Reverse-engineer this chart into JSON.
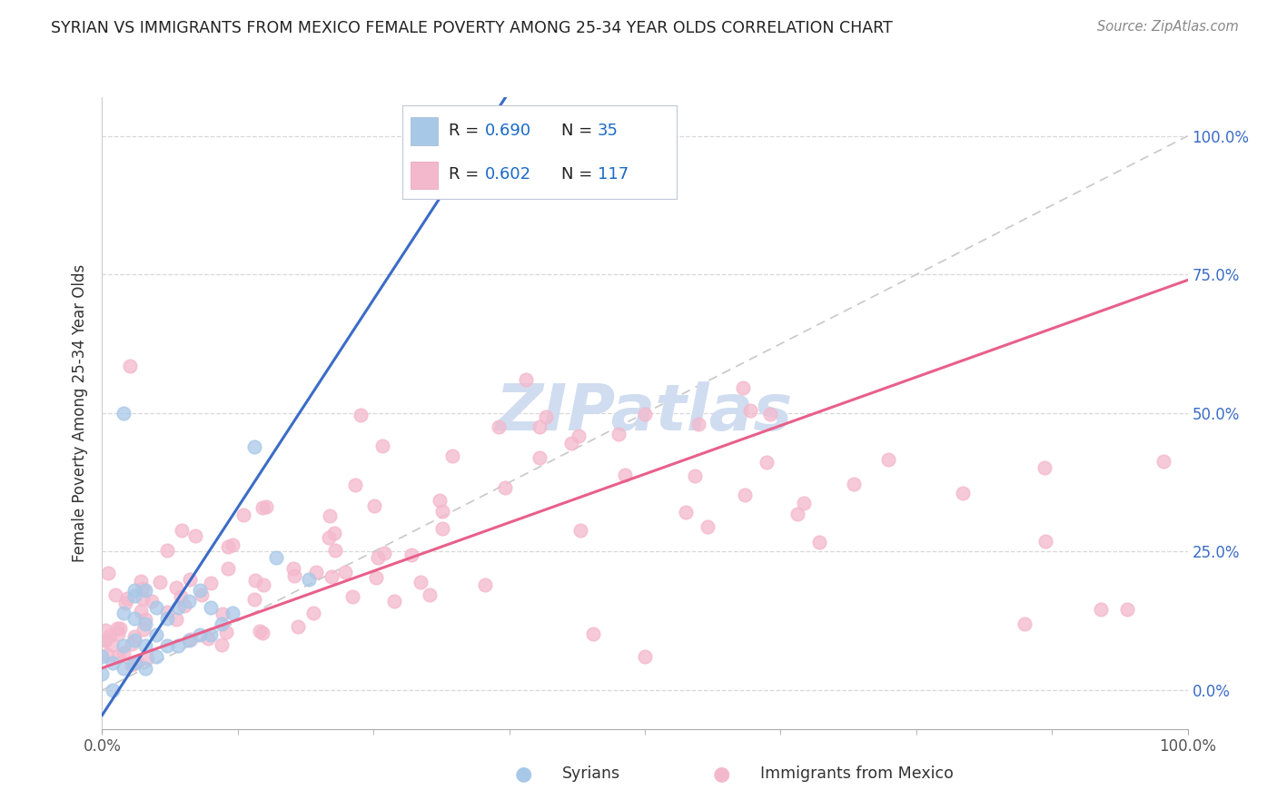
{
  "title": "SYRIAN VS IMMIGRANTS FROM MEXICO FEMALE POVERTY AMONG 25-34 YEAR OLDS CORRELATION CHART",
  "source": "Source: ZipAtlas.com",
  "ylabel": "Female Poverty Among 25-34 Year Olds",
  "legend_label_syrian": "Syrians",
  "legend_label_mexico": "Immigrants from Mexico",
  "syrian_color": "#a8c8e8",
  "mexico_color": "#f4b8cc",
  "syrian_line_color": "#3b6cc7",
  "mexico_line_color": "#e8608a",
  "diagonal_color": "#c8c8c8",
  "background_color": "#ffffff",
  "grid_color": "#d8d8d8",
  "title_color": "#222222",
  "source_color": "#888888",
  "right_tick_color": "#3b6cc7",
  "watermark_color": "#d0ddf0",
  "legend_text_color": "#1a3a7a",
  "legend_R_color": "#1a6ac7",
  "legend_N_color": "#1a6ac7"
}
